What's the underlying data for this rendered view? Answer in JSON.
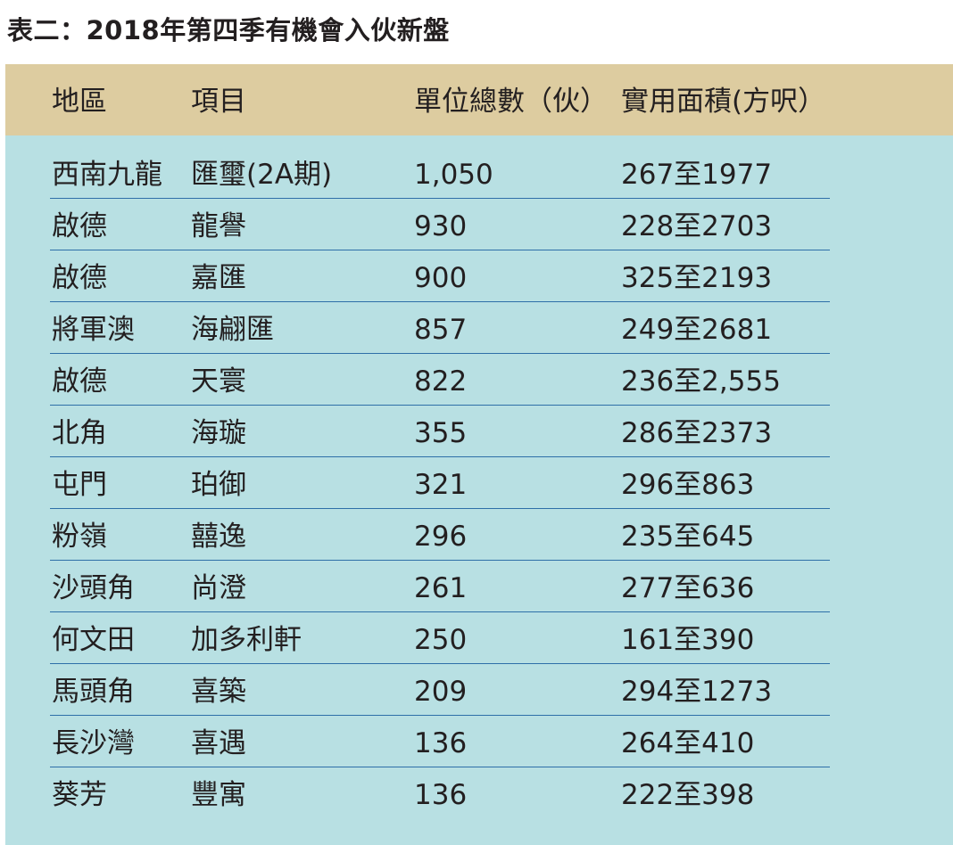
{
  "title": "表二：2018年第四季有機會入伙新盤",
  "columns": [
    "地區",
    "項目",
    "單位總數（伙）",
    "實用面積(方呎）"
  ],
  "rows": [
    [
      "西南九龍",
      "匯璽(2A期)",
      "1,050",
      "267至1977"
    ],
    [
      "啟德",
      "龍譽",
      "930",
      "228至2703"
    ],
    [
      "啟德",
      "嘉匯",
      "900",
      "325至2193"
    ],
    [
      "將軍澳",
      "海翩匯",
      "857",
      "249至2681"
    ],
    [
      "啟德",
      "天寰",
      "822",
      "236至2,555"
    ],
    [
      "北角",
      "海璇",
      "355",
      "286至2373"
    ],
    [
      "屯門",
      "珀御",
      "321",
      "296至863"
    ],
    [
      "粉嶺",
      "囍逸",
      "296",
      "235至645"
    ],
    [
      "沙頭角",
      "尚澄",
      "261",
      "277至636"
    ],
    [
      "何文田",
      "加多利軒",
      "250",
      "161至390"
    ],
    [
      "馬頭角",
      "喜築",
      "209",
      "294至1273"
    ],
    [
      "長沙灣",
      "喜遇",
      "136",
      "264至410"
    ],
    [
      "葵芳",
      "豐寓",
      "136",
      "222至398"
    ]
  ],
  "colors": {
    "header_background": "#ddcca0",
    "body_background": "#b8e0e3",
    "row_rule": "#2e6fa8",
    "text": "#231f20"
  }
}
